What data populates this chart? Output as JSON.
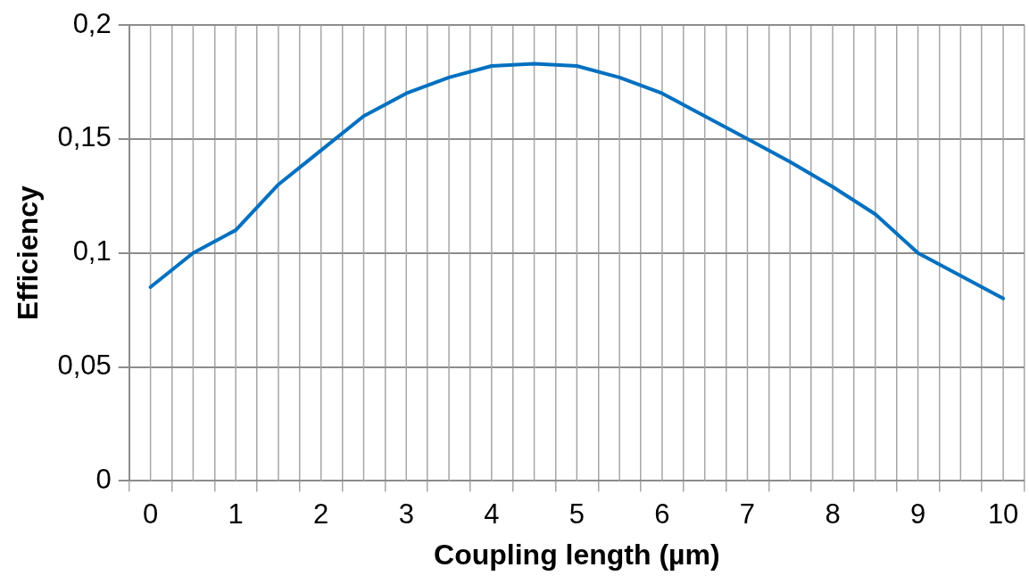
{
  "chart_data": {
    "type": "line",
    "xlabel": "Coupling length (µm)",
    "ylabel": "Efficiency",
    "categories": [
      "0",
      null,
      "1",
      null,
      "2",
      null,
      "3",
      null,
      "4",
      null,
      "5",
      null,
      "6",
      null,
      "7",
      null,
      "8",
      null,
      "9",
      null,
      "10"
    ],
    "series": [
      {
        "color": "#0070c0",
        "values": [
          0.085,
          0.1,
          0.11,
          0.13,
          0.145,
          0.16,
          0.17,
          0.177,
          0.182,
          0.183,
          0.182,
          0.177,
          0.17,
          0.16,
          0.15,
          0.14,
          0.129,
          0.117,
          0.1,
          0.09,
          0.08
        ]
      }
    ],
    "ylim": [
      0,
      0.2
    ],
    "yticks": [
      {
        "value": 0,
        "label": "0"
      },
      {
        "value": 0.05,
        "label": "0,05"
      },
      {
        "value": 0.1,
        "label": "0,1"
      },
      {
        "value": 0.15,
        "label": "0,15"
      },
      {
        "value": 0.2,
        "label": "0,2"
      }
    ],
    "grid": true,
    "legend": false,
    "marker": "none",
    "line_style": "solid"
  }
}
